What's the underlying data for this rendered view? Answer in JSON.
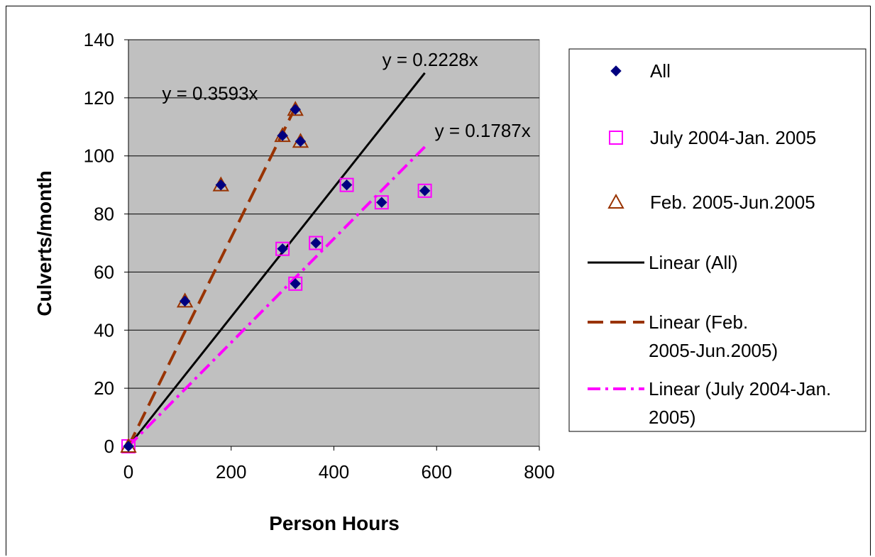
{
  "chart_data": {
    "type": "scatter",
    "xlabel": "Person Hours",
    "ylabel": "Culverts/month",
    "xlim": [
      0,
      800
    ],
    "ylim": [
      0,
      140
    ],
    "x_ticks": [
      0,
      200,
      400,
      600,
      800
    ],
    "y_ticks": [
      0,
      20,
      40,
      60,
      80,
      100,
      120,
      140
    ],
    "grid": "horizontal",
    "plot_background": "#c0c0c0",
    "legend_position": "right",
    "series": [
      {
        "name": "All",
        "marker": "diamond",
        "color": "#000080",
        "points": [
          [
            0,
            0
          ],
          [
            110,
            50
          ],
          [
            180,
            90
          ],
          [
            300,
            68
          ],
          [
            300,
            107
          ],
          [
            325,
            56
          ],
          [
            325,
            116
          ],
          [
            335,
            105
          ],
          [
            365,
            70
          ],
          [
            425,
            90
          ],
          [
            493,
            84
          ],
          [
            577,
            88
          ]
        ]
      },
      {
        "name": "July 2004-Jan. 2005",
        "marker": "square-open",
        "color": "#ff00ff",
        "points": [
          [
            0,
            0
          ],
          [
            300,
            68
          ],
          [
            325,
            56
          ],
          [
            365,
            70
          ],
          [
            425,
            90
          ],
          [
            493,
            84
          ],
          [
            577,
            88
          ]
        ]
      },
      {
        "name": "Feb. 2005-Jun.2005",
        "marker": "triangle-open",
        "color": "#993300",
        "points": [
          [
            0,
            0
          ],
          [
            110,
            50
          ],
          [
            180,
            90
          ],
          [
            300,
            107
          ],
          [
            325,
            116
          ],
          [
            335,
            105
          ]
        ]
      }
    ],
    "trendlines": [
      {
        "name": "Linear (All)",
        "slope": 0.2228,
        "x_end": 577,
        "style": "solid",
        "color": "#000000",
        "equation": "y = 0.2228x"
      },
      {
        "name": "Linear (Feb. 2005-Jun.2005)",
        "slope": 0.3593,
        "x_end": 328,
        "style": "dash",
        "color": "#993300",
        "equation": "y = 0.3593x"
      },
      {
        "name": "Linear (July 2004-Jan. 2005)",
        "slope": 0.1787,
        "x_end": 577,
        "style": "dashdot",
        "color": "#ff00ff",
        "equation": "y = 0.1787x"
      }
    ],
    "legend_entries": [
      {
        "label": "All",
        "kind": "marker",
        "ref": "All"
      },
      {
        "label": "July 2004-Jan. 2005",
        "kind": "marker",
        "ref": "July 2004-Jan. 2005"
      },
      {
        "label": "Feb. 2005-Jun.2005",
        "kind": "marker",
        "ref": "Feb. 2005-Jun.2005"
      },
      {
        "label": "Linear (All)",
        "kind": "line",
        "ref": "Linear (All)"
      },
      {
        "label": "Linear (Feb. 2005-Jun.2005)",
        "kind": "line",
        "ref": "Linear (Feb. 2005-Jun.2005)"
      },
      {
        "label": "Linear (July 2004-Jan. 2005)",
        "kind": "line",
        "ref": "Linear (July 2004-Jan. 2005)"
      }
    ]
  }
}
